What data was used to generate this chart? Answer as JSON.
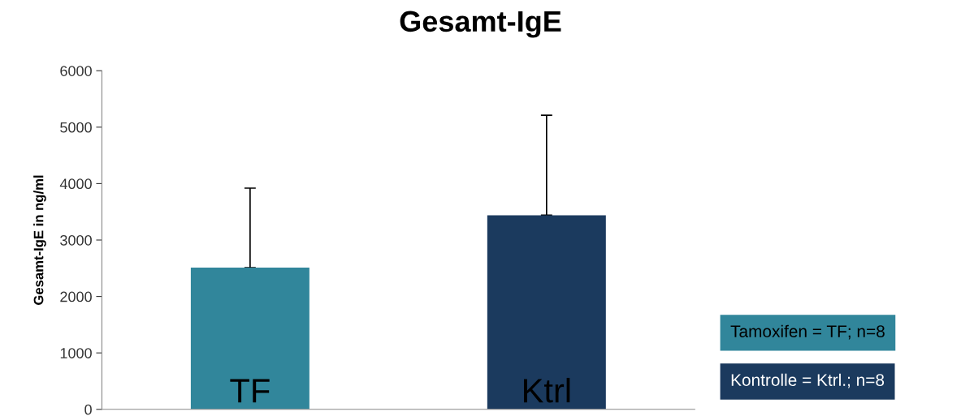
{
  "chart_data": {
    "type": "bar",
    "title": "Gesamt-IgE",
    "ylabel": "Gesamt-IgE in ng/ml",
    "categories": [
      "TF",
      "Ktrl"
    ],
    "values": [
      2510,
      3440
    ],
    "colors": [
      "#31869b",
      "#1b3a5e"
    ],
    "errors": [
      [
        2510,
        3920
      ],
      [
        3440,
        5210
      ]
    ],
    "ylim": [
      0,
      6000
    ],
    "yticks": [
      0,
      1000,
      2000,
      3000,
      4000,
      5000,
      6000
    ],
    "annotations": [
      "Tamoxifen = TF; n=8",
      "Kontrolle = Ktrl.; n=8"
    ]
  }
}
